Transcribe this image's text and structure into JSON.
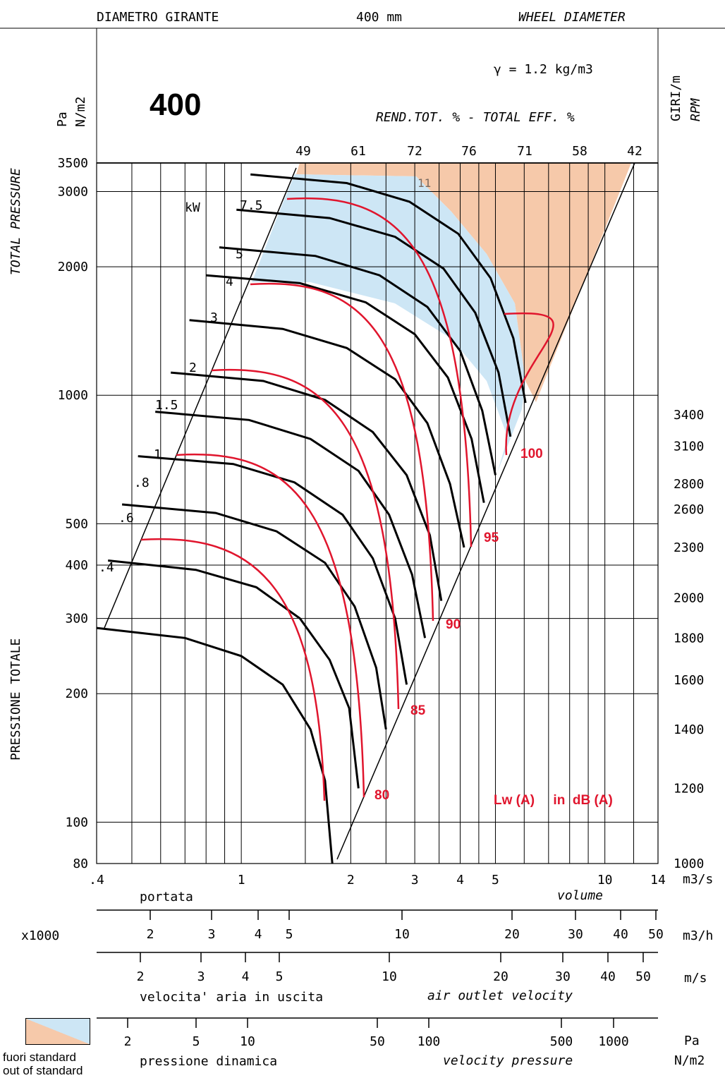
{
  "header": {
    "diam_it": "DIAMETRO GIRANTE",
    "diam_value": "400 mm",
    "diam_en": "WHEEL DIAMETER",
    "size_label": "400",
    "density": "γ = 1.2 kg/m3",
    "eff_label": "REND.TOT. % - TOTAL EFF. %"
  },
  "axes": {
    "pressure_units_pa": "Pa",
    "pressure_units_nm2": "N/m2",
    "total_pressure_en": "TOTAL PRESSURE",
    "pressione_totale_it": "PRESSIONE TOTALE",
    "rpm_it": "GIRI/m",
    "rpm_en": "RPM",
    "kw_label": "kW",
    "volume_unit": "m3/s",
    "portata_it": "portata",
    "volume_en": "volume",
    "x1000": "x1000",
    "m3h_unit": "m3/h",
    "ms_unit": "m/s",
    "velocity_it": "velocita' aria in uscita",
    "velocity_en": "air outlet velocity",
    "pd_unit_pa": "Pa",
    "pd_unit_nm2": "N/m2",
    "pd_it": "pressione dinamica",
    "pd_en": "velocity pressure"
  },
  "legend": {
    "out_it": "fuori standard",
    "out_en": "out of standard",
    "noise": "Lw (A)     in  dB (A)"
  },
  "colors": {
    "out_of_standard_orange": "#f6c9aa",
    "out_of_standard_blue": "#cde6f5",
    "noise_red": "#e0152d",
    "ink": "#000000"
  },
  "chart_data": {
    "type": "line",
    "title": "400",
    "subtitle": "DIAMETRO GIRANTE 400 mm WHEEL DIAMETER",
    "xlabel": "portata / volume (m3/s)",
    "ylabel": "PRESSIONE TOTALE / TOTAL PRESSURE (Pa N/m2)",
    "x_scale": "log",
    "y_scale": "log",
    "xlim": [
      0.4,
      14
    ],
    "ylim": [
      80,
      3500
    ],
    "x_ticks": [
      ".4",
      "1",
      "2",
      "3",
      "4",
      "5",
      "10",
      "14"
    ],
    "y_ticks": [
      "80",
      "100",
      "200",
      "300",
      "400",
      "500",
      "1000",
      "2000",
      "3000",
      "3500"
    ],
    "efficiency_ticks": [
      "49",
      "61",
      "72",
      "76",
      "71",
      "58",
      "42"
    ],
    "kw_labels": [
      ".4",
      ".6",
      ".8",
      "1",
      "1.5",
      "2",
      "3",
      "4",
      "5",
      "7.5",
      "11"
    ],
    "rpm_labels": [
      "1000",
      "1200",
      "1400",
      "1600",
      "1800",
      "2000",
      "2300",
      "2600",
      "2800",
      "3100",
      "3400"
    ],
    "rpm_pressure_at_xmax": [
      80,
      120,
      165,
      215,
      270,
      335,
      440,
      540,
      620,
      760,
      900
    ],
    "noise_labels": [
      "80",
      "85",
      "90",
      "95",
      "100"
    ],
    "m3h_ticks": [
      "2",
      "3",
      "4",
      "5",
      "10",
      "20",
      "30",
      "40",
      "50"
    ],
    "ms_ticks": [
      "2",
      "3",
      "4",
      "5",
      "10",
      "20",
      "30",
      "40",
      "50"
    ],
    "pd_ticks": [
      "2",
      "5",
      "10",
      "50",
      "100",
      "500",
      "1000"
    ],
    "series": [
      {
        "name": "1000",
        "values": [
          [
            0.4,
            285
          ],
          [
            0.7,
            270
          ],
          [
            1.0,
            245
          ],
          [
            1.3,
            210
          ],
          [
            1.55,
            165
          ],
          [
            1.7,
            125
          ],
          [
            1.78,
            80
          ]
        ]
      },
      {
        "name": "1200",
        "values": [
          [
            0.43,
            410
          ],
          [
            0.75,
            390
          ],
          [
            1.1,
            355
          ],
          [
            1.45,
            300
          ],
          [
            1.75,
            240
          ],
          [
            1.98,
            185
          ],
          [
            2.1,
            120
          ]
        ]
      },
      {
        "name": "1400",
        "values": [
          [
            0.47,
            555
          ],
          [
            0.85,
            530
          ],
          [
            1.25,
            480
          ],
          [
            1.7,
            405
          ],
          [
            2.05,
            320
          ],
          [
            2.35,
            230
          ],
          [
            2.5,
            165
          ]
        ]
      },
      {
        "name": "1600",
        "values": [
          [
            0.52,
            720
          ],
          [
            0.95,
            690
          ],
          [
            1.4,
            625
          ],
          [
            1.9,
            525
          ],
          [
            2.3,
            415
          ],
          [
            2.65,
            300
          ],
          [
            2.85,
            210
          ]
        ]
      },
      {
        "name": "1800",
        "values": [
          [
            0.58,
            915
          ],
          [
            1.05,
            875
          ],
          [
            1.55,
            790
          ],
          [
            2.1,
            665
          ],
          [
            2.55,
            525
          ],
          [
            2.95,
            380
          ],
          [
            3.2,
            270
          ]
        ]
      },
      {
        "name": "2000",
        "values": [
          [
            0.64,
            1130
          ],
          [
            1.15,
            1080
          ],
          [
            1.7,
            975
          ],
          [
            2.3,
            820
          ],
          [
            2.85,
            650
          ],
          [
            3.3,
            470
          ],
          [
            3.55,
            330
          ]
        ]
      },
      {
        "name": "2300",
        "values": [
          [
            0.72,
            1500
          ],
          [
            1.3,
            1430
          ],
          [
            1.95,
            1290
          ],
          [
            2.65,
            1090
          ],
          [
            3.25,
            860
          ],
          [
            3.75,
            620
          ],
          [
            4.1,
            440
          ]
        ]
      },
      {
        "name": "2600",
        "values": [
          [
            0.8,
            1910
          ],
          [
            1.45,
            1830
          ],
          [
            2.2,
            1650
          ],
          [
            3.0,
            1390
          ],
          [
            3.7,
            1100
          ],
          [
            4.3,
            790
          ],
          [
            4.65,
            560
          ]
        ]
      },
      {
        "name": "2800",
        "values": [
          [
            0.87,
            2220
          ],
          [
            1.6,
            2120
          ],
          [
            2.4,
            1910
          ],
          [
            3.25,
            1610
          ],
          [
            4.0,
            1270
          ],
          [
            4.6,
            920
          ],
          [
            5.0,
            650
          ]
        ]
      },
      {
        "name": "3100",
        "values": [
          [
            0.97,
            2720
          ],
          [
            1.75,
            2600
          ],
          [
            2.65,
            2350
          ],
          [
            3.6,
            1980
          ],
          [
            4.4,
            1560
          ],
          [
            5.1,
            1130
          ],
          [
            5.5,
            800
          ]
        ]
      },
      {
        "name": "3400",
        "values": [
          [
            1.06,
            3290
          ],
          [
            1.95,
            3140
          ],
          [
            2.9,
            2840
          ],
          [
            3.95,
            2390
          ],
          [
            4.85,
            1880
          ],
          [
            5.6,
            1360
          ],
          [
            6.05,
            960
          ]
        ]
      }
    ]
  }
}
